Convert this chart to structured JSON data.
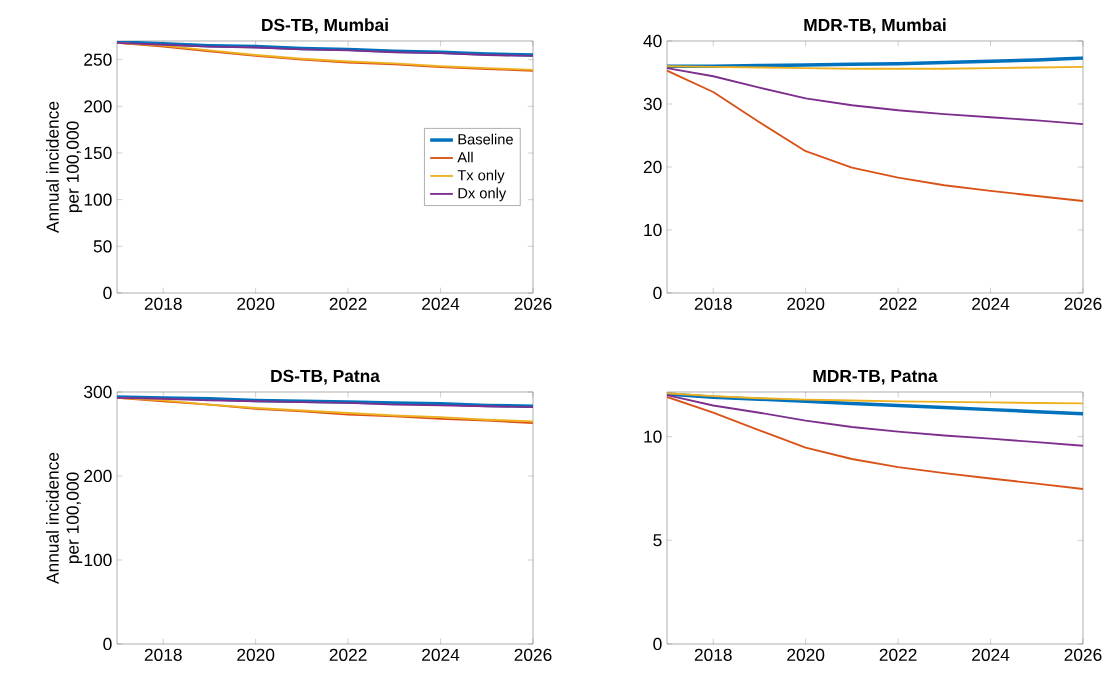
{
  "chart_data": [
    {
      "type": "line",
      "title": "DS-TB, Mumbai",
      "ylabel": "Annual incidence\nper 100,000",
      "x": [
        2017,
        2018,
        2019,
        2020,
        2021,
        2022,
        2023,
        2024,
        2025,
        2026
      ],
      "xlim": [
        2017,
        2026
      ],
      "xticks": [
        2018,
        2020,
        2022,
        2024,
        2026
      ],
      "ylim": [
        0,
        270
      ],
      "yticks": [
        0,
        50,
        100,
        150,
        200,
        250
      ],
      "legend": "right",
      "series": [
        {
          "name": "Baseline",
          "color": "#0072bd",
          "values": [
            269,
            267,
            265,
            264,
            262,
            261,
            259,
            258,
            256,
            255
          ]
        },
        {
          "name": "All",
          "color": "#d95319",
          "values": [
            268,
            264,
            259,
            254,
            250,
            247,
            245,
            242,
            240,
            238
          ]
        },
        {
          "name": "Tx only",
          "color": "#edb120",
          "values": [
            268,
            265,
            260,
            255,
            251,
            248,
            246,
            243,
            241,
            239
          ]
        },
        {
          "name": "Dx only",
          "color": "#7e2f8e",
          "values": [
            268,
            266,
            264,
            263,
            261,
            260,
            258,
            257,
            255,
            254
          ]
        }
      ]
    },
    {
      "type": "line",
      "title": "MDR-TB, Mumbai",
      "x": [
        2017,
        2018,
        2019,
        2020,
        2021,
        2022,
        2023,
        2024,
        2025,
        2026
      ],
      "xlim": [
        2017,
        2026
      ],
      "xticks": [
        2018,
        2020,
        2022,
        2024,
        2026
      ],
      "ylim": [
        0,
        40
      ],
      "yticks": [
        0,
        10,
        20,
        30,
        40
      ],
      "series": [
        {
          "color": "#0072bd",
          "values": [
            36,
            36,
            36.1,
            36.2,
            36.3,
            36.4,
            36.6,
            36.8,
            37,
            37.3
          ]
        },
        {
          "color": "#d95319",
          "values": [
            35.3,
            31.9,
            27.1,
            22.5,
            19.9,
            18.3,
            17.1,
            16.2,
            15.4,
            14.6
          ]
        },
        {
          "color": "#edb120",
          "values": [
            36,
            35.9,
            35.8,
            35.7,
            35.6,
            35.6,
            35.6,
            35.7,
            35.8,
            35.9
          ]
        },
        {
          "color": "#7e2f8e",
          "values": [
            35.7,
            34.4,
            32.6,
            30.9,
            29.8,
            29,
            28.4,
            27.9,
            27.4,
            26.8
          ]
        }
      ]
    },
    {
      "type": "line",
      "title": "DS-TB, Patna",
      "ylabel": "Annual incidence\nper 100,000",
      "x": [
        2017,
        2018,
        2019,
        2020,
        2021,
        2022,
        2023,
        2024,
        2025,
        2026
      ],
      "xlim": [
        2017,
        2026
      ],
      "xticks": [
        2018,
        2020,
        2022,
        2024,
        2026
      ],
      "ylim": [
        0,
        300
      ],
      "yticks": [
        0,
        100,
        200,
        300
      ],
      "series": [
        {
          "color": "#0072bd",
          "values": [
            294,
            293,
            292,
            290,
            289,
            288,
            287,
            286,
            284,
            283
          ]
        },
        {
          "color": "#d95319",
          "values": [
            293,
            289,
            285,
            280,
            277,
            273,
            271,
            268,
            266,
            263
          ]
        },
        {
          "color": "#edb120",
          "values": [
            293,
            290,
            285,
            281,
            278,
            275,
            272,
            270,
            267,
            265
          ]
        },
        {
          "color": "#7e2f8e",
          "values": [
            293,
            292,
            290,
            289,
            288,
            287,
            285,
            284,
            283,
            282
          ]
        }
      ]
    },
    {
      "type": "line",
      "title": "MDR-TB, Patna",
      "x": [
        2017,
        2018,
        2019,
        2020,
        2021,
        2022,
        2023,
        2024,
        2025,
        2026
      ],
      "xlim": [
        2017,
        2026
      ],
      "xticks": [
        2018,
        2020,
        2022,
        2024,
        2026
      ],
      "ylim": [
        0,
        12.15
      ],
      "yticks": [
        0,
        5,
        10
      ],
      "series": [
        {
          "color": "#0072bd",
          "values": [
            12.05,
            11.9,
            11.8,
            11.7,
            11.6,
            11.5,
            11.4,
            11.3,
            11.2,
            11.1
          ]
        },
        {
          "color": "#d95319",
          "values": [
            11.91,
            11.15,
            10.3,
            9.47,
            8.92,
            8.53,
            8.24,
            7.98,
            7.73,
            7.47
          ]
        },
        {
          "color": "#edb120",
          "values": [
            12.09,
            11.95,
            11.85,
            11.78,
            11.74,
            11.7,
            11.67,
            11.65,
            11.62,
            11.6
          ]
        },
        {
          "color": "#7e2f8e",
          "values": [
            12,
            11.5,
            11.15,
            10.77,
            10.46,
            10.24,
            10.05,
            9.9,
            9.73,
            9.56
          ]
        }
      ]
    }
  ]
}
